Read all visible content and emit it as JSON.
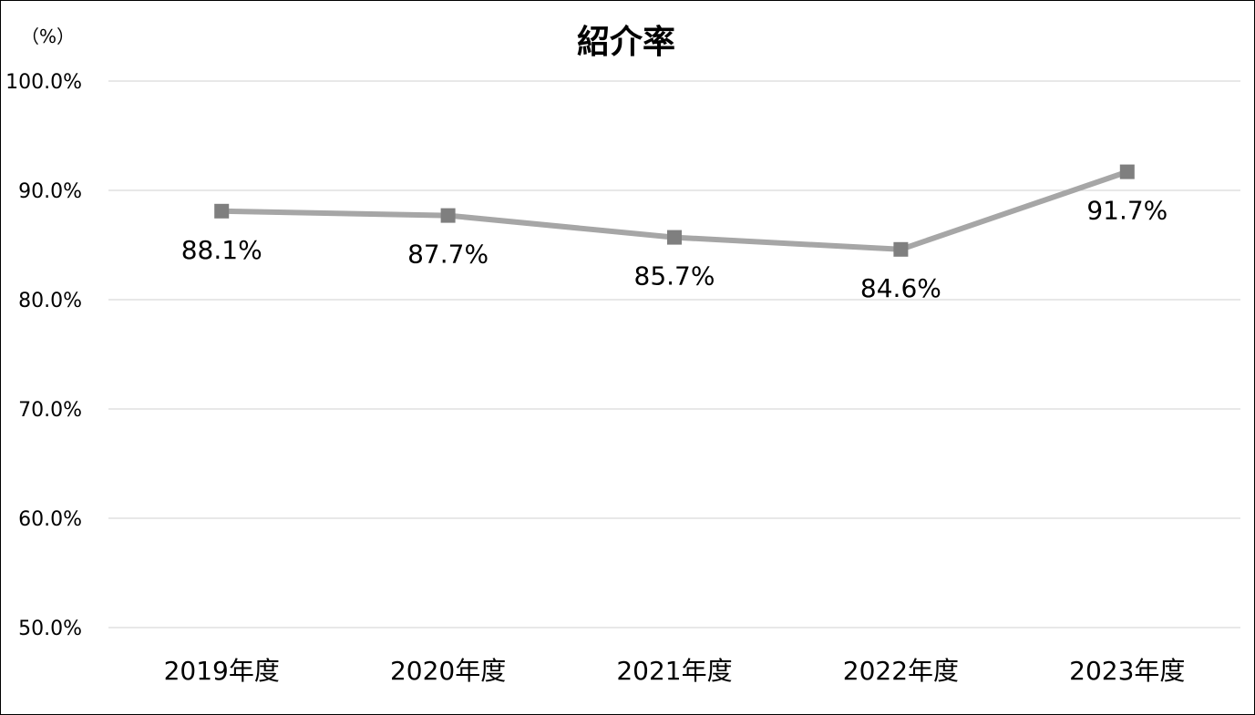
{
  "chart_data": {
    "type": "line",
    "title": "紹介率",
    "unit_label": "（%）",
    "categories": [
      "2019年度",
      "2020年度",
      "2021年度",
      "2022年度",
      "2023年度"
    ],
    "series": [
      {
        "values": [
          88.1,
          87.7,
          85.7,
          84.6,
          91.7
        ],
        "data_labels": [
          "88.1%",
          "87.7%",
          "85.7%",
          "84.6%",
          "91.7%"
        ],
        "color": "#a6a6a6",
        "marker_color": "#7f7f7f",
        "marker": "square"
      }
    ],
    "ylim": [
      50,
      100
    ],
    "yticks": [
      100,
      90,
      80,
      70,
      60,
      50
    ],
    "ytick_labels": [
      "100.0%",
      "90.0%",
      "80.0%",
      "70.0%",
      "60.0%",
      "50.0%"
    ],
    "grid": true,
    "gridline_color": "#d9d9d9"
  }
}
